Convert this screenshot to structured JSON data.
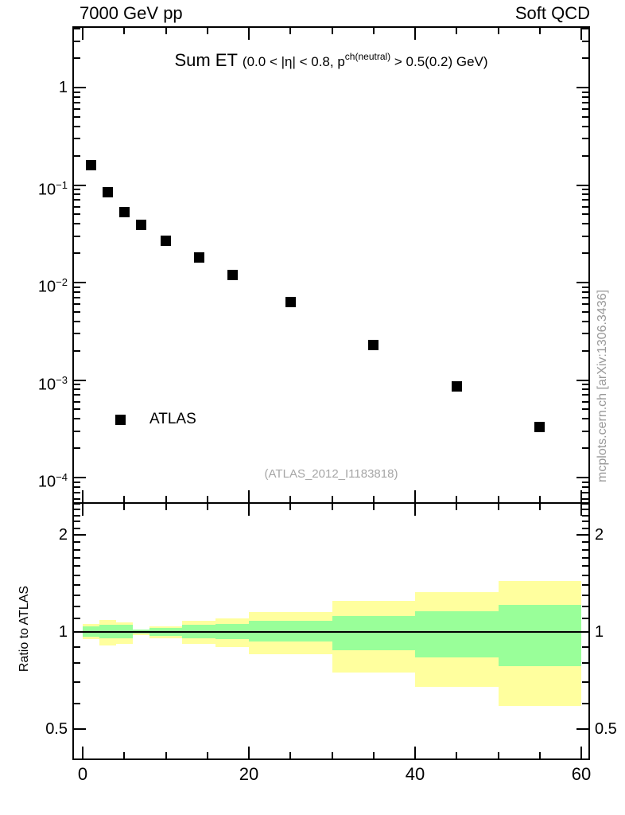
{
  "header": {
    "left": "7000 GeV pp",
    "right": "Soft QCD"
  },
  "panel_title": {
    "main": "Sum ET",
    "cut_prefix": "(0.0 < |η| < 0.8, p",
    "cut_sup": "ch(neutral)",
    "cut_suffix": " > 0.5(0.2) GeV)"
  },
  "legend": {
    "label": "ATLAS"
  },
  "annotations": {
    "dataset_ref": "(ATLAS_2012_I1183818)",
    "watermark": "mcplots.cern.ch [arXiv:1306.3436]"
  },
  "colors": {
    "marker": "#000000",
    "outer_band": "#ffff9e",
    "inner_band": "#99ff99",
    "gray_text": "#999999"
  },
  "chart_data": {
    "type": "scatter",
    "title": "Sum ET (0.0 < |η| < 0.8, p^ch(neutral) > 0.5(0.2) GeV)",
    "top_panel": {
      "xscale": "linear",
      "yscale": "log",
      "xlim": [
        -1.25,
        61.05
      ],
      "ylim": [
        5.4e-05,
        4.3
      ],
      "x_major_ticks": [
        0,
        20,
        40,
        60
      ],
      "x_minor_step": 5,
      "x_tick_labels": [
        "0",
        "20",
        "40",
        "60"
      ],
      "y_tick_labels": [
        {
          "v": 1,
          "label": "1"
        },
        {
          "v": 0.1,
          "label": "10^−1"
        },
        {
          "v": 0.01,
          "label": "10^−2"
        },
        {
          "v": 0.001,
          "label": "10^−3"
        },
        {
          "v": 0.0001,
          "label": "10^−4"
        }
      ],
      "series": [
        {
          "name": "ATLAS",
          "marker": "filled-square",
          "color": "#000000",
          "x": [
            1,
            3,
            5,
            7,
            10,
            14,
            18,
            25,
            35,
            45,
            55
          ],
          "y": [
            0.16,
            0.084,
            0.053,
            0.039,
            0.027,
            0.018,
            0.012,
            0.0063,
            0.0023,
            0.00086,
            0.00033
          ]
        }
      ]
    },
    "ratio_panel": {
      "ylabel": "Ratio to ATLAS",
      "yscale": "log",
      "ylim": [
        0.4,
        2.5
      ],
      "y_tick_labels": [
        {
          "v": 2,
          "label": "2"
        },
        {
          "v": 1,
          "label": "1"
        },
        {
          "v": 0.5,
          "label": "0.5"
        }
      ],
      "reference_line": 1,
      "bin_edges": [
        0,
        2,
        4,
        6,
        8,
        12,
        16,
        20,
        30,
        40,
        50,
        60
      ],
      "bands": {
        "outer": {
          "color": "#ffff9e",
          "hi": [
            1.06,
            1.09,
            1.07,
            1.02,
            1.04,
            1.08,
            1.1,
            1.15,
            1.25,
            1.33,
            1.44
          ],
          "lo": [
            0.95,
            0.91,
            0.92,
            0.98,
            0.955,
            0.92,
            0.9,
            0.855,
            0.75,
            0.675,
            0.59
          ]
        },
        "inner": {
          "color": "#99ff99",
          "hi": [
            1.04,
            1.055,
            1.05,
            1.015,
            1.03,
            1.05,
            1.06,
            1.08,
            1.12,
            1.16,
            1.21
          ],
          "lo": [
            0.965,
            0.955,
            0.957,
            0.988,
            0.972,
            0.956,
            0.948,
            0.934,
            0.877,
            0.834,
            0.785
          ]
        }
      }
    }
  }
}
